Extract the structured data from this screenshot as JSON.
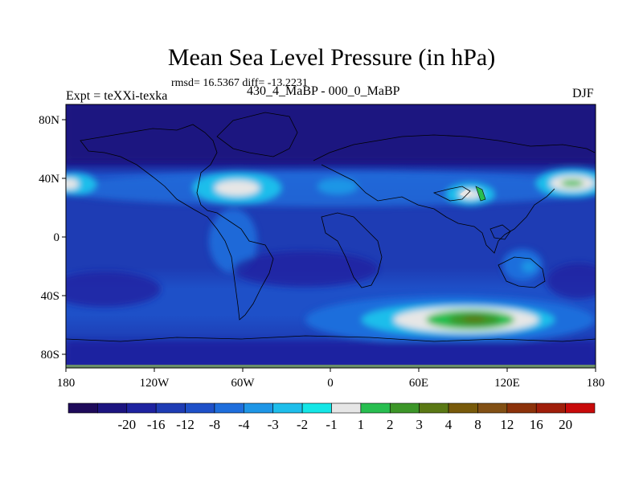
{
  "title": "Mean Sea Level Pressure (in hPa)",
  "stats": "rmsd= 16.5367 diff= -13.2231",
  "experiment": "Expt = teXXi-texka",
  "difference": "430_4_MaBP - 000_0_MaBP",
  "season": "DJF",
  "map": {
    "lon_ticks": [
      "180",
      "120W",
      "60W",
      "0",
      "60E",
      "120E",
      "180"
    ],
    "lat_ticks": [
      "80N",
      "40N",
      "0",
      "40S",
      "80S"
    ]
  },
  "legend": {
    "labels": [
      "-20",
      "-16",
      "-12",
      "-8",
      "-4",
      "-3",
      "-2",
      "-1",
      "1",
      "2",
      "3",
      "4",
      "8",
      "12",
      "16",
      "20"
    ],
    "colors": [
      "#1e0a5a",
      "#1c1480",
      "#1e23a0",
      "#1e3cb4",
      "#1e50c8",
      "#1e6edc",
      "#1e96e6",
      "#1ebeeb",
      "#14e6e6",
      "#e6e6e6",
      "#28be50",
      "#3c9628",
      "#5a7814",
      "#785a0a",
      "#825014",
      "#8c320a",
      "#a01e0a",
      "#c80a0a"
    ]
  }
}
